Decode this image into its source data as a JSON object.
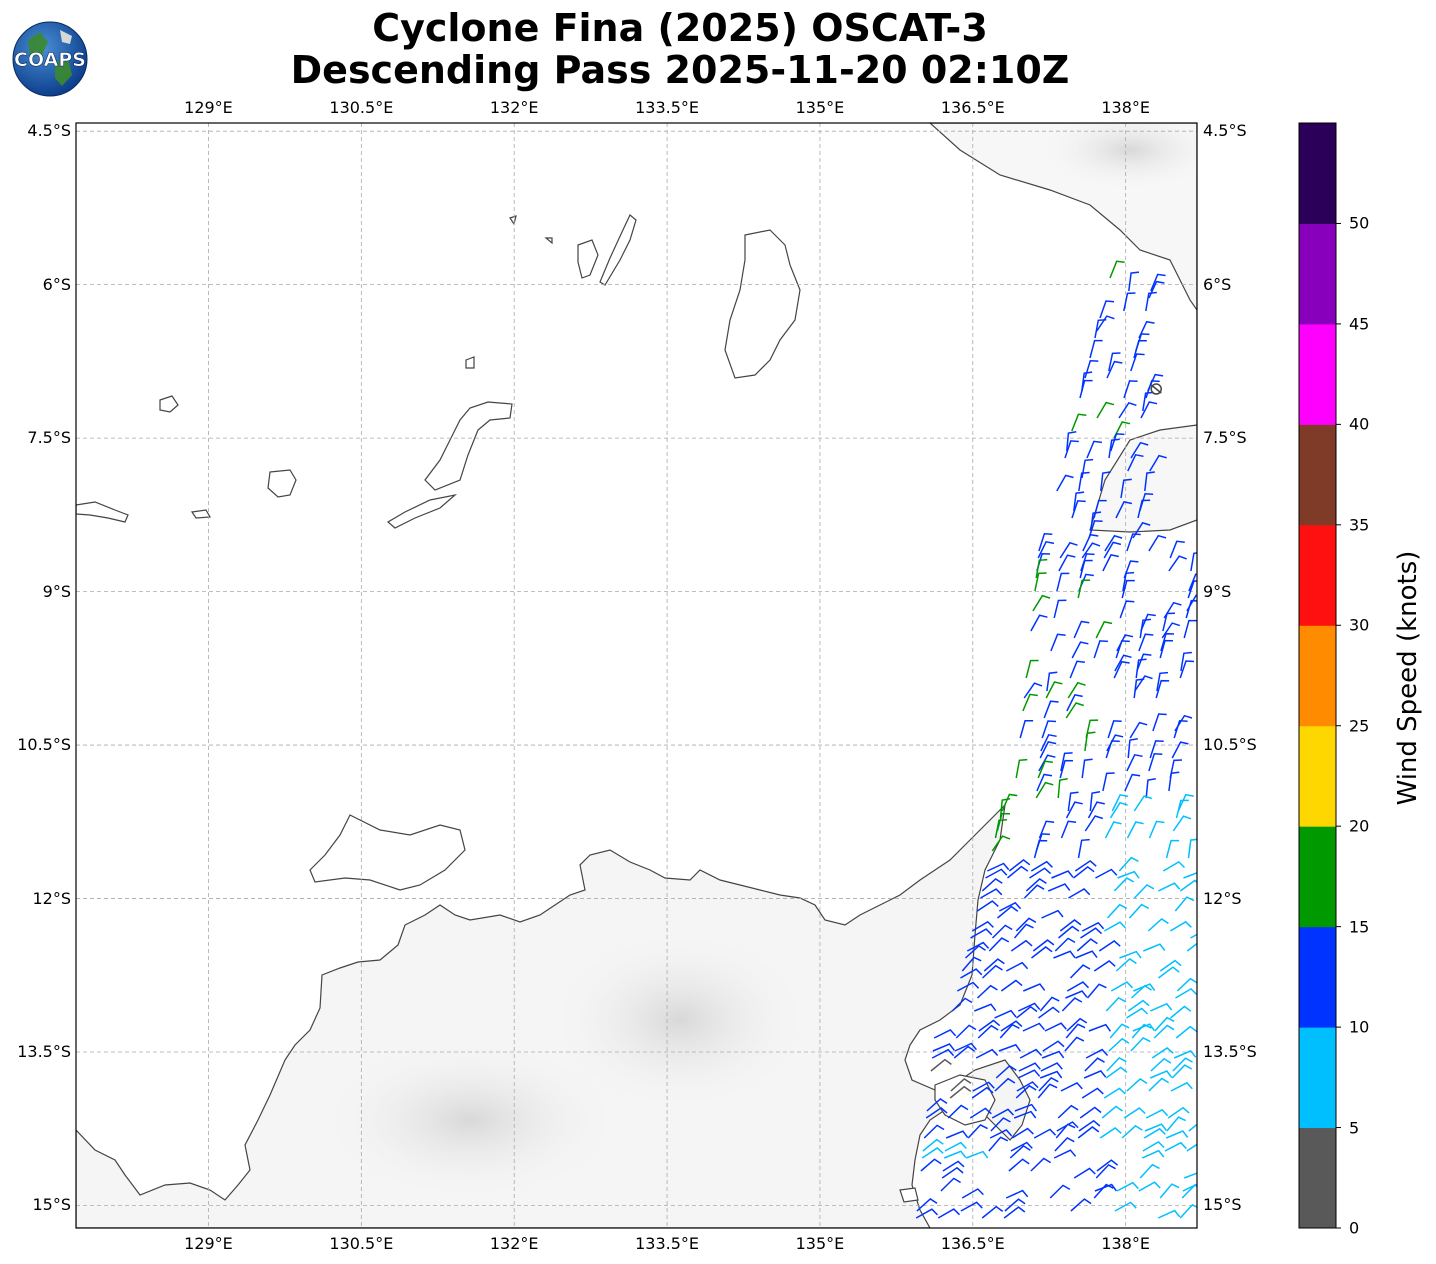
{
  "title_line1": "Cyclone Fina (2025) OSCAT-3",
  "title_line2": "Descending Pass 2025-11-20 02:10Z",
  "logo_text": "COAPS",
  "map": {
    "lon_range": [
      127.7,
      138.7
    ],
    "lat_range": [
      -15.22,
      -4.42
    ],
    "lon_ticks": [
      "129°E",
      "130.5°E",
      "132°E",
      "133.5°E",
      "135°E",
      "136.5°E",
      "138°E"
    ],
    "lat_ticks": [
      "4.5°S",
      "6°S",
      "7.5°S",
      "9°S",
      "10.5°S",
      "12°S",
      "13.5°S",
      "15°S"
    ],
    "gridlines": true,
    "center_symbol_lonlat": [
      138.3,
      -7.02
    ]
  },
  "colorbar": {
    "title": "Wind Speed (knots)",
    "tick_labels": [
      "0",
      "5",
      "10",
      "15",
      "20",
      "25",
      "30",
      "35",
      "40",
      "45",
      "50"
    ],
    "colors": [
      "#595959",
      "#00bfff",
      "#0033ff",
      "#009900",
      "#ffd700",
      "#ff8c00",
      "#ff1010",
      "#803a28",
      "#ff00ff",
      "#8800bb",
      "#2a0058"
    ]
  }
}
